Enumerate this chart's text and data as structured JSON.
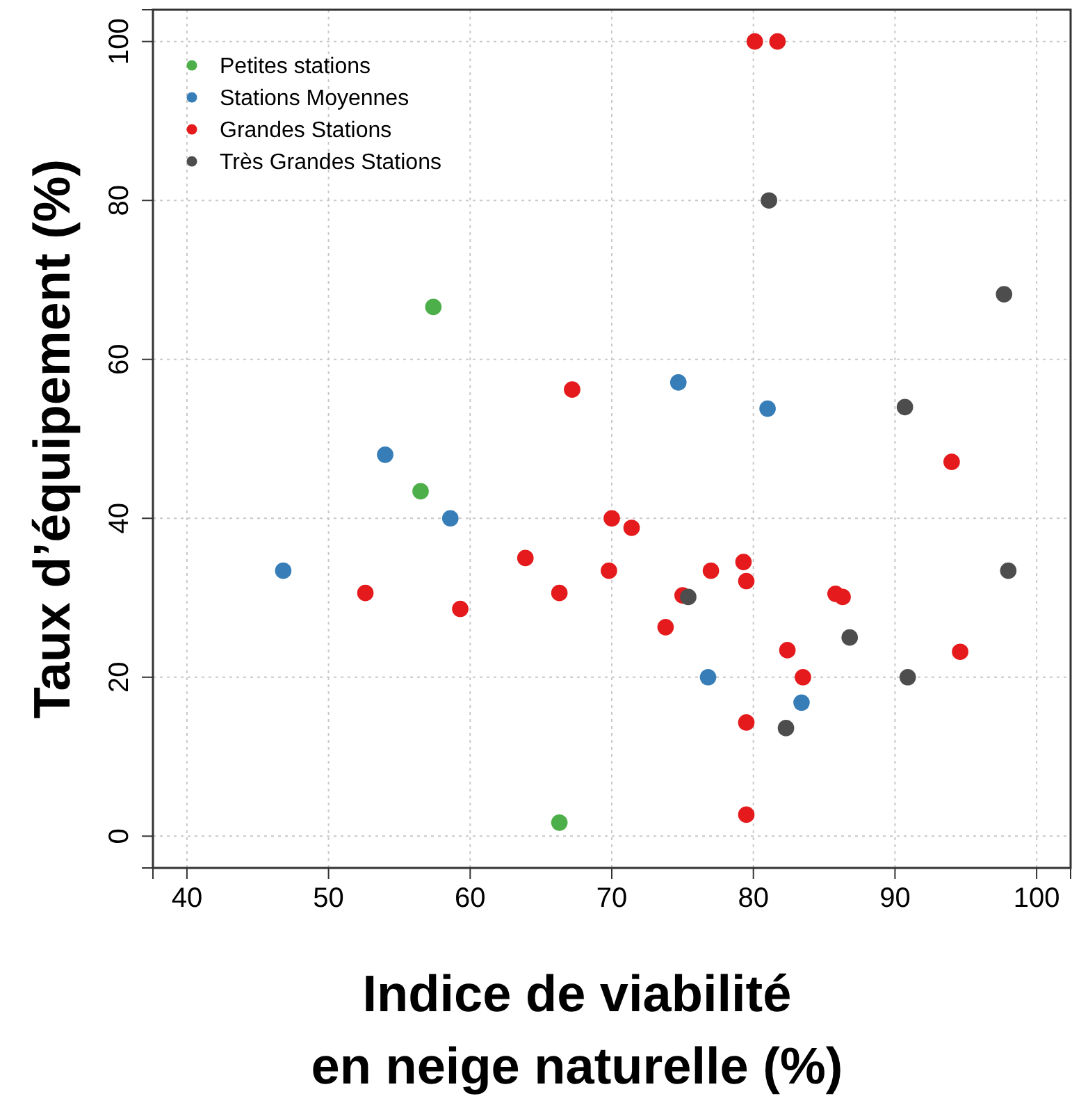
{
  "chart_data": {
    "type": "scatter",
    "xlabel": "Indice de viabilité\nen neige naturelle (%)",
    "ylabel": "Taux d’équipement (%)",
    "xlim": [
      37.6,
      102.4
    ],
    "ylim": [
      -4,
      104
    ],
    "xticks": [
      40,
      50,
      60,
      70,
      80,
      90,
      100
    ],
    "yticks": [
      0,
      20,
      40,
      60,
      80,
      100
    ],
    "grid": true,
    "legend": "top left",
    "marker": "circle",
    "series": [
      {
        "name": "Petites stations",
        "color": "#4daf4a",
        "x": [
          57.4,
          56.5,
          66.3
        ],
        "values": [
          66.6,
          43.4,
          1.7
        ]
      },
      {
        "name": "Stations Moyennes",
        "color": "#377eb8",
        "x": [
          54.0,
          58.6,
          46.8,
          74.7,
          81.0,
          76.8,
          83.4
        ],
        "values": [
          48.0,
          40,
          33.4,
          57.1,
          53.8,
          20,
          16.8
        ]
      },
      {
        "name": "Grandes Stations",
        "color": "#e41a1c",
        "x": [
          67.2,
          52.6,
          59.3,
          63.9,
          66.3,
          80.1,
          81.7,
          70.0,
          71.4,
          69.8,
          77.0,
          79.3,
          79.5,
          75.0,
          73.8,
          85.8,
          86.3,
          82.4,
          83.5,
          79.5,
          79.5,
          94.0,
          94.6
        ],
        "values": [
          56.2,
          30.6,
          28.6,
          35.0,
          30.6,
          100,
          100,
          40,
          38.8,
          33.4,
          33.4,
          34.5,
          32.1,
          30.3,
          26.3,
          30.5,
          30.1,
          23.4,
          20,
          14.3,
          2.7,
          47.1,
          23.2
        ]
      },
      {
        "name": "Très Grandes Stations",
        "color": "#4d4d4d",
        "x": [
          81.1,
          97.7,
          90.7,
          98.0,
          75.4,
          86.8,
          90.9,
          82.3
        ],
        "values": [
          80,
          68.2,
          54.0,
          33.4,
          30.1,
          25.0,
          20,
          13.6
        ]
      }
    ]
  }
}
